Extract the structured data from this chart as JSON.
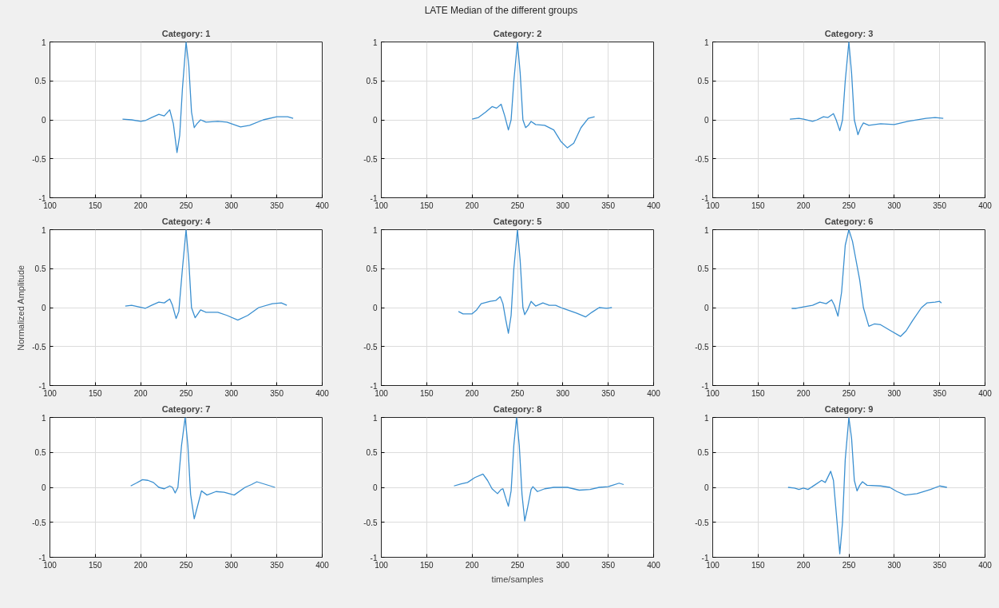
{
  "chart_data": [
    {
      "type": "line",
      "title": "Category: 1",
      "annotations": [
        "LATE Median of the different groups"
      ],
      "xlim": [
        100,
        400
      ],
      "xticks": [
        100,
        150,
        200,
        250,
        300,
        350,
        400
      ],
      "ylim": [
        -1,
        1
      ],
      "yticks": [
        -1,
        -0.5,
        0,
        0.5,
        1
      ],
      "grid": true,
      "line_style": "solid",
      "series": [
        {
          "color": "#3a8fd0",
          "x": [
            180,
            190,
            200,
            205,
            212,
            220,
            226,
            232,
            236,
            240,
            243,
            246,
            250,
            253,
            256,
            259,
            262,
            266,
            272,
            285,
            295,
            310,
            320,
            335,
            350,
            362,
            368
          ],
          "values": [
            0.01,
            0.0,
            -0.02,
            -0.01,
            0.03,
            0.07,
            0.05,
            0.13,
            -0.05,
            -0.42,
            -0.2,
            0.4,
            1.0,
            0.7,
            0.1,
            -0.1,
            -0.05,
            0.0,
            -0.03,
            -0.02,
            -0.03,
            -0.09,
            -0.07,
            0.0,
            0.04,
            0.04,
            0.02
          ]
        }
      ]
    },
    {
      "type": "line",
      "title": "Category: 2",
      "xlim": [
        100,
        400
      ],
      "xticks": [
        100,
        150,
        200,
        250,
        300,
        350,
        400
      ],
      "ylim": [
        -1,
        1
      ],
      "yticks": [
        -1,
        -0.5,
        0,
        0.5,
        1
      ],
      "grid": true,
      "line_style": "solid",
      "series": [
        {
          "color": "#3a8fd0",
          "x": [
            200,
            207,
            215,
            222,
            227,
            232,
            236,
            240,
            243,
            246,
            250,
            253,
            256,
            259,
            262,
            265,
            270,
            280,
            290,
            298,
            305,
            312,
            320,
            328,
            335
          ],
          "values": [
            0.01,
            0.03,
            0.1,
            0.17,
            0.15,
            0.2,
            0.05,
            -0.13,
            0.0,
            0.5,
            1.0,
            0.6,
            0.0,
            -0.1,
            -0.07,
            -0.02,
            -0.06,
            -0.07,
            -0.13,
            -0.28,
            -0.36,
            -0.3,
            -0.1,
            0.02,
            0.04
          ]
        }
      ]
    },
    {
      "type": "line",
      "title": "Category: 3",
      "xlim": [
        100,
        400
      ],
      "xticks": [
        100,
        150,
        200,
        250,
        300,
        350,
        400
      ],
      "ylim": [
        -1,
        1
      ],
      "yticks": [
        -1,
        -0.5,
        0,
        0.5,
        1
      ],
      "grid": true,
      "line_style": "solid",
      "series": [
        {
          "color": "#3a8fd0",
          "x": [
            185,
            195,
            200,
            210,
            215,
            222,
            227,
            233,
            236,
            240,
            243,
            246,
            250,
            253,
            256,
            260,
            263,
            266,
            272,
            285,
            300,
            315,
            335,
            345,
            354
          ],
          "values": [
            0.01,
            0.02,
            0.01,
            -0.02,
            0.0,
            0.04,
            0.03,
            0.08,
            0.0,
            -0.14,
            0.0,
            0.5,
            1.0,
            0.6,
            0.0,
            -0.19,
            -0.1,
            -0.04,
            -0.07,
            -0.05,
            -0.06,
            -0.02,
            0.02,
            0.03,
            0.02
          ]
        }
      ]
    },
    {
      "type": "line",
      "title": "Category: 4",
      "ylabel": "Normalized Amplitude",
      "xlim": [
        100,
        400
      ],
      "xticks": [
        100,
        150,
        200,
        250,
        300,
        350,
        400
      ],
      "ylim": [
        -1,
        1
      ],
      "yticks": [
        -1,
        -0.5,
        0,
        0.5,
        1
      ],
      "grid": true,
      "line_style": "solid",
      "series": [
        {
          "color": "#3a8fd0",
          "x": [
            183,
            190,
            198,
            205,
            212,
            220,
            226,
            232,
            235,
            239,
            242,
            246,
            250,
            253,
            256,
            260,
            263,
            266,
            272,
            285,
            295,
            307,
            318,
            330,
            345,
            355,
            361
          ],
          "values": [
            0.02,
            0.03,
            0.01,
            -0.01,
            0.03,
            0.07,
            0.06,
            0.11,
            0.03,
            -0.14,
            -0.05,
            0.5,
            1.0,
            0.6,
            0.0,
            -0.13,
            -0.08,
            -0.03,
            -0.06,
            -0.06,
            -0.1,
            -0.16,
            -0.1,
            0.0,
            0.05,
            0.06,
            0.03
          ]
        }
      ]
    },
    {
      "type": "line",
      "title": "Category: 5",
      "xlim": [
        100,
        400
      ],
      "xticks": [
        100,
        150,
        200,
        250,
        300,
        350,
        400
      ],
      "ylim": [
        -1,
        1
      ],
      "yticks": [
        -1,
        -0.5,
        0,
        0.5,
        1
      ],
      "grid": true,
      "line_style": "solid",
      "series": [
        {
          "color": "#3a8fd0",
          "x": [
            185,
            190,
            200,
            205,
            210,
            220,
            226,
            231,
            234,
            237,
            240,
            243,
            246,
            250,
            253,
            256,
            258,
            261,
            265,
            270,
            278,
            285,
            292,
            300,
            315,
            325,
            332,
            340,
            348,
            354
          ],
          "values": [
            -0.05,
            -0.08,
            -0.08,
            -0.03,
            0.05,
            0.08,
            0.09,
            0.14,
            0.05,
            -0.15,
            -0.33,
            -0.1,
            0.5,
            1.0,
            0.6,
            0.0,
            -0.09,
            -0.03,
            0.08,
            0.02,
            0.06,
            0.03,
            0.03,
            -0.01,
            -0.07,
            -0.12,
            -0.06,
            0.0,
            -0.01,
            0.0
          ]
        }
      ]
    },
    {
      "type": "line",
      "title": "Category: 6",
      "xlim": [
        100,
        400
      ],
      "xticks": [
        100,
        150,
        200,
        250,
        300,
        350,
        400
      ],
      "ylim": [
        -1,
        1
      ],
      "yticks": [
        -1,
        -0.5,
        0,
        0.5,
        1
      ],
      "grid": true,
      "line_style": "solid",
      "series": [
        {
          "color": "#3a8fd0",
          "x": [
            187,
            192,
            200,
            210,
            218,
            225,
            231,
            234,
            238,
            242,
            246,
            250,
            254,
            258,
            262,
            266,
            272,
            278,
            285,
            295,
            307,
            313,
            320,
            330,
            336,
            345,
            350,
            352
          ],
          "values": [
            -0.01,
            -0.01,
            0.01,
            0.03,
            0.07,
            0.05,
            0.1,
            0.03,
            -0.11,
            0.2,
            0.8,
            1.0,
            0.85,
            0.6,
            0.35,
            0.0,
            -0.24,
            -0.21,
            -0.22,
            -0.29,
            -0.37,
            -0.3,
            -0.17,
            0.0,
            0.06,
            0.07,
            0.08,
            0.06
          ]
        }
      ]
    },
    {
      "type": "line",
      "title": "Category: 7",
      "xlim": [
        100,
        400
      ],
      "xticks": [
        100,
        150,
        200,
        250,
        300,
        350,
        400
      ],
      "ylim": [
        -1,
        1
      ],
      "yticks": [
        -1,
        -0.5,
        0,
        0.5,
        1
      ],
      "grid": true,
      "line_style": "solid",
      "series": [
        {
          "color": "#3a8fd0",
          "x": [
            189,
            195,
            202,
            208,
            214,
            220,
            226,
            232,
            235,
            238,
            241,
            245,
            249,
            252,
            255,
            259,
            262,
            267,
            273,
            283,
            292,
            303,
            315,
            322,
            328,
            338,
            348
          ],
          "values": [
            0.02,
            0.06,
            0.11,
            0.1,
            0.07,
            0.0,
            -0.02,
            0.02,
            0.0,
            -0.08,
            0.0,
            0.6,
            1.0,
            0.6,
            -0.1,
            -0.45,
            -0.3,
            -0.05,
            -0.11,
            -0.06,
            -0.07,
            -0.11,
            0.0,
            0.04,
            0.08,
            0.04,
            0.0
          ]
        }
      ]
    },
    {
      "type": "line",
      "title": "Category: 8",
      "xlabel": "time/samples",
      "xlim": [
        100,
        400
      ],
      "xticks": [
        100,
        150,
        200,
        250,
        300,
        350,
        400
      ],
      "ylim": [
        -1,
        1
      ],
      "yticks": [
        -1,
        -0.5,
        0,
        0.5,
        1
      ],
      "grid": true,
      "line_style": "solid",
      "series": [
        {
          "color": "#3a8fd0",
          "x": [
            180,
            188,
            195,
            203,
            212,
            217,
            222,
            228,
            232,
            234,
            237,
            240,
            243,
            246,
            249,
            252,
            255,
            258,
            261,
            265,
            267,
            272,
            280,
            290,
            305,
            318,
            330,
            340,
            350,
            362,
            367
          ],
          "values": [
            0.02,
            0.05,
            0.07,
            0.14,
            0.19,
            0.1,
            -0.02,
            -0.09,
            -0.03,
            -0.02,
            -0.15,
            -0.27,
            -0.05,
            0.6,
            1.0,
            0.6,
            -0.1,
            -0.48,
            -0.3,
            -0.03,
            0.01,
            -0.06,
            -0.02,
            0.0,
            0.0,
            -0.04,
            -0.03,
            0.0,
            0.01,
            0.06,
            0.04
          ]
        }
      ]
    },
    {
      "type": "line",
      "title": "Category: 9",
      "xlim": [
        100,
        400
      ],
      "xticks": [
        100,
        150,
        200,
        250,
        300,
        350,
        400
      ],
      "ylim": [
        -1,
        1
      ],
      "yticks": [
        -1,
        -0.5,
        0,
        0.5,
        1
      ],
      "grid": true,
      "line_style": "solid",
      "series": [
        {
          "color": "#3a8fd0",
          "x": [
            183,
            190,
            195,
            200,
            205,
            212,
            220,
            224,
            230,
            233,
            237,
            240,
            243,
            246,
            250,
            253,
            256,
            259,
            262,
            265,
            270,
            285,
            295,
            303,
            312,
            325,
            340,
            350,
            358
          ],
          "values": [
            0.0,
            -0.01,
            -0.03,
            -0.01,
            -0.03,
            0.03,
            0.1,
            0.07,
            0.23,
            0.1,
            -0.5,
            -0.95,
            -0.5,
            0.4,
            1.0,
            0.7,
            0.1,
            -0.05,
            0.03,
            0.08,
            0.03,
            0.02,
            0.0,
            -0.06,
            -0.11,
            -0.09,
            -0.03,
            0.02,
            0.0
          ]
        }
      ]
    }
  ]
}
